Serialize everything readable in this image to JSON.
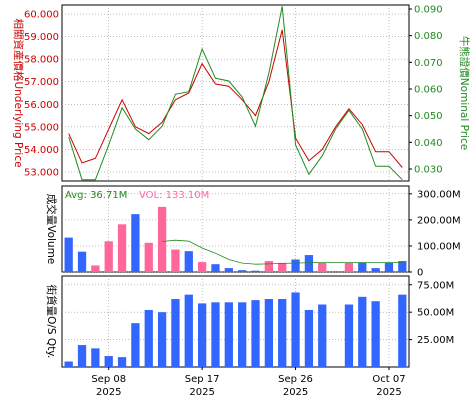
{
  "colors": {
    "underlying": "#cc0000",
    "nominal": "#228b22",
    "vol_up": "#3366ff",
    "vol_down": "#ff6699",
    "avg_line": "#228b22",
    "os_bar": "#3366ff",
    "avg_label": "#228b22",
    "vol_label": "#ff66aa"
  },
  "chart_data": [
    {
      "type": "line",
      "ylabel_left": "相關資產價格Underlying Price",
      "ylabel_right": "牛熊證價Nominal Price",
      "y_left_ticks": [
        "53.000",
        "54.000",
        "55.000",
        "56.000",
        "57.000",
        "58.000",
        "59.000",
        "60.000"
      ],
      "y_right_ticks": [
        "0.030",
        "0.040",
        "0.050",
        "0.060",
        "0.070",
        "0.080",
        "0.090"
      ],
      "ylim_left": [
        52.6,
        60.4
      ],
      "ylim_right": [
        0.0255,
        0.0915
      ],
      "x_index": [
        0,
        1,
        2,
        3,
        4,
        5,
        6,
        7,
        8,
        9,
        10,
        11,
        12,
        13,
        14,
        15,
        16,
        17,
        18,
        19,
        20,
        21,
        22,
        23,
        24,
        25
      ],
      "series": [
        {
          "name": "Underlying Price",
          "axis": "left",
          "values": [
            54.7,
            53.4,
            53.6,
            54.9,
            56.2,
            55.0,
            54.7,
            55.2,
            56.2,
            56.5,
            57.8,
            56.9,
            56.8,
            56.2,
            55.5,
            57.0,
            59.3,
            54.5,
            53.5,
            54.0,
            55.0,
            55.8,
            55.1,
            53.9,
            53.9,
            53.2
          ]
        },
        {
          "name": "Nominal Price",
          "axis": "right",
          "values": [
            0.042,
            0.026,
            0.026,
            0.039,
            0.053,
            0.045,
            0.041,
            0.046,
            0.058,
            0.059,
            0.075,
            0.064,
            0.063,
            0.057,
            0.046,
            0.066,
            0.091,
            0.039,
            0.028,
            0.035,
            0.045,
            0.052,
            0.045,
            0.031,
            0.031,
            0.026
          ]
        }
      ]
    },
    {
      "type": "bar",
      "ylabel": "成交量Volume",
      "y_ticks": [
        "0",
        "100.00M",
        "200.00M",
        "300.00M"
      ],
      "ylim": [
        0,
        330
      ],
      "unit": "M",
      "avg_label": "Avg: 36.71M",
      "vol_label": "VOL: 133.10M",
      "values": [
        132,
        78,
        25,
        118,
        183,
        222,
        112,
        250,
        86,
        80,
        38,
        30,
        15,
        7,
        5,
        42,
        35,
        48,
        65,
        35,
        0,
        35,
        35,
        15,
        35,
        42
      ],
      "direction": [
        "up",
        "up",
        "down",
        "down",
        "down",
        "up",
        "down",
        "down",
        "down",
        "up",
        "down",
        "up",
        "up",
        "up",
        "up",
        "down",
        "down",
        "up",
        "up",
        "down",
        "up",
        "down",
        "up",
        "up",
        "up",
        "up"
      ],
      "avg_values": [
        null,
        null,
        null,
        null,
        null,
        null,
        null,
        117,
        122,
        118,
        92,
        72,
        48,
        34,
        30,
        31,
        33,
        34,
        36,
        36,
        36,
        36,
        37,
        37,
        37,
        37
      ]
    },
    {
      "type": "bar",
      "ylabel": "街貨量O/S Qty.",
      "y_ticks": [
        "25.00M",
        "50.00M",
        "75.00M"
      ],
      "ylim": [
        0,
        83
      ],
      "unit": "M",
      "values": [
        5,
        20,
        17,
        10,
        9,
        40,
        52,
        50,
        62,
        66,
        58,
        59,
        59,
        59,
        61,
        62,
        62,
        68,
        52,
        57,
        0,
        57,
        64,
        60,
        0,
        66
      ]
    }
  ],
  "x_axis": {
    "labels": [
      {
        "index": 3,
        "day": "Sep 08",
        "year": "2025"
      },
      {
        "index": 10,
        "day": "Sep 17",
        "year": "2025"
      },
      {
        "index": 17,
        "day": "Sep 26",
        "year": "2025"
      },
      {
        "index": 24,
        "day": "Oct 07",
        "year": "2025"
      }
    ]
  }
}
